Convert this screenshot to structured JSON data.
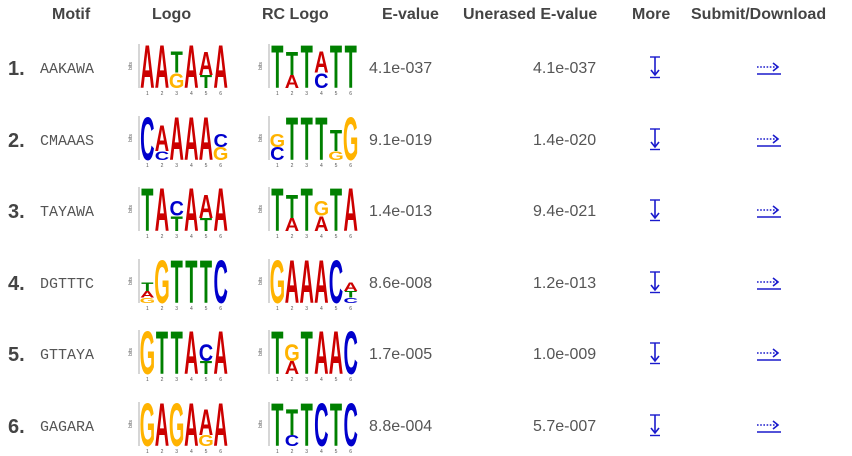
{
  "headers": {
    "motif": "Motif",
    "logo": "Logo",
    "rc_logo": "RC Logo",
    "evalue": "E-value",
    "unerased_evalue": "Unerased E-value",
    "more": "More",
    "submit_download": "Submit/Download"
  },
  "colors": {
    "A": "#CC0000",
    "C": "#0000CC",
    "G": "#FFB300",
    "T": "#008000",
    "link": "#1a1acc"
  },
  "logo_axis": {
    "label": "bits"
  },
  "icons": {
    "more": "down-arrow-icon",
    "submit": "dotted-right-arrow-icon"
  },
  "motifs": [
    {
      "index": "1.",
      "consensus": "AAKAWA",
      "evalue": "4.1e-037",
      "unerased_evalue": "4.1e-037",
      "logo": [
        [
          {
            "l": "A",
            "h": 1
          }
        ],
        [
          {
            "l": "A",
            "h": 1
          }
        ],
        [
          {
            "l": "T",
            "h": 0.5
          },
          {
            "l": "G",
            "h": 0.35
          }
        ],
        [
          {
            "l": "A",
            "h": 1
          }
        ],
        [
          {
            "l": "A",
            "h": 0.55
          },
          {
            "l": "T",
            "h": 0.3
          }
        ],
        [
          {
            "l": "A",
            "h": 1
          }
        ]
      ],
      "rc_logo": [
        [
          {
            "l": "T",
            "h": 1
          }
        ],
        [
          {
            "l": "T",
            "h": 0.55
          },
          {
            "l": "A",
            "h": 0.3
          }
        ],
        [
          {
            "l": "T",
            "h": 1
          }
        ],
        [
          {
            "l": "A",
            "h": 0.5
          },
          {
            "l": "C",
            "h": 0.35
          }
        ],
        [
          {
            "l": "T",
            "h": 1
          }
        ],
        [
          {
            "l": "T",
            "h": 1
          }
        ]
      ]
    },
    {
      "index": "2.",
      "consensus": "CMAAAS",
      "evalue": "9.1e-019",
      "unerased_evalue": "1.4e-020",
      "logo": [
        [
          {
            "l": "C",
            "h": 1
          }
        ],
        [
          {
            "l": "A",
            "h": 0.6
          },
          {
            "l": "C",
            "h": 0.2
          }
        ],
        [
          {
            "l": "A",
            "h": 1
          }
        ],
        [
          {
            "l": "A",
            "h": 1
          }
        ],
        [
          {
            "l": "A",
            "h": 1
          }
        ],
        [
          {
            "l": "C",
            "h": 0.3
          },
          {
            "l": "G",
            "h": 0.3
          }
        ]
      ],
      "rc_logo": [
        [
          {
            "l": "G",
            "h": 0.3
          },
          {
            "l": "C",
            "h": 0.3
          }
        ],
        [
          {
            "l": "T",
            "h": 1
          }
        ],
        [
          {
            "l": "T",
            "h": 1
          }
        ],
        [
          {
            "l": "T",
            "h": 1
          }
        ],
        [
          {
            "l": "T",
            "h": 0.5
          },
          {
            "l": "G",
            "h": 0.2
          }
        ],
        [
          {
            "l": "G",
            "h": 1
          }
        ]
      ]
    },
    {
      "index": "3.",
      "consensus": "TAYAWA",
      "evalue": "1.4e-013",
      "unerased_evalue": "9.4e-021",
      "logo": [
        [
          {
            "l": "T",
            "h": 1
          }
        ],
        [
          {
            "l": "A",
            "h": 1
          }
        ],
        [
          {
            "l": "C",
            "h": 0.35
          },
          {
            "l": "T",
            "h": 0.35
          }
        ],
        [
          {
            "l": "A",
            "h": 1
          }
        ],
        [
          {
            "l": "A",
            "h": 0.55
          },
          {
            "l": "T",
            "h": 0.3
          }
        ],
        [
          {
            "l": "A",
            "h": 1
          }
        ]
      ],
      "rc_logo": [
        [
          {
            "l": "T",
            "h": 1
          }
        ],
        [
          {
            "l": "T",
            "h": 0.55
          },
          {
            "l": "A",
            "h": 0.3
          }
        ],
        [
          {
            "l": "T",
            "h": 1
          }
        ],
        [
          {
            "l": "G",
            "h": 0.35
          },
          {
            "l": "A",
            "h": 0.35
          }
        ],
        [
          {
            "l": "T",
            "h": 1
          }
        ],
        [
          {
            "l": "A",
            "h": 1
          }
        ]
      ]
    },
    {
      "index": "4.",
      "consensus": "DGTTTC",
      "evalue": "8.6e-008",
      "unerased_evalue": "1.2e-013",
      "logo": [
        [
          {
            "l": "T",
            "h": 0.2
          },
          {
            "l": "A",
            "h": 0.15
          },
          {
            "l": "G",
            "h": 0.12
          }
        ],
        [
          {
            "l": "G",
            "h": 1
          }
        ],
        [
          {
            "l": "T",
            "h": 1
          }
        ],
        [
          {
            "l": "T",
            "h": 1
          }
        ],
        [
          {
            "l": "T",
            "h": 1
          }
        ],
        [
          {
            "l": "C",
            "h": 1
          }
        ]
      ],
      "rc_logo": [
        [
          {
            "l": "G",
            "h": 1
          }
        ],
        [
          {
            "l": "A",
            "h": 1
          }
        ],
        [
          {
            "l": "A",
            "h": 1
          }
        ],
        [
          {
            "l": "A",
            "h": 1
          }
        ],
        [
          {
            "l": "C",
            "h": 1
          }
        ],
        [
          {
            "l": "A",
            "h": 0.2
          },
          {
            "l": "T",
            "h": 0.15
          },
          {
            "l": "C",
            "h": 0.12
          }
        ]
      ]
    },
    {
      "index": "5.",
      "consensus": "GTTAYA",
      "evalue": "1.7e-005",
      "unerased_evalue": "1.0e-009",
      "logo": [
        [
          {
            "l": "G",
            "h": 1
          }
        ],
        [
          {
            "l": "T",
            "h": 1
          }
        ],
        [
          {
            "l": "T",
            "h": 1
          }
        ],
        [
          {
            "l": "A",
            "h": 1
          }
        ],
        [
          {
            "l": "C",
            "h": 0.4
          },
          {
            "l": "T",
            "h": 0.3
          }
        ],
        [
          {
            "l": "A",
            "h": 1
          }
        ]
      ],
      "rc_logo": [
        [
          {
            "l": "T",
            "h": 1
          }
        ],
        [
          {
            "l": "G",
            "h": 0.4
          },
          {
            "l": "A",
            "h": 0.3
          }
        ],
        [
          {
            "l": "T",
            "h": 1
          }
        ],
        [
          {
            "l": "A",
            "h": 1
          }
        ],
        [
          {
            "l": "A",
            "h": 1
          }
        ],
        [
          {
            "l": "C",
            "h": 1
          }
        ]
      ]
    },
    {
      "index": "6.",
      "consensus": "GAGARA",
      "evalue": "8.8e-004",
      "unerased_evalue": "5.7e-007",
      "logo": [
        [
          {
            "l": "G",
            "h": 1
          }
        ],
        [
          {
            "l": "A",
            "h": 1
          }
        ],
        [
          {
            "l": "G",
            "h": 1
          }
        ],
        [
          {
            "l": "A",
            "h": 1
          }
        ],
        [
          {
            "l": "A",
            "h": 0.6
          },
          {
            "l": "G",
            "h": 0.25
          }
        ],
        [
          {
            "l": "A",
            "h": 1
          }
        ]
      ],
      "rc_logo": [
        [
          {
            "l": "T",
            "h": 1
          }
        ],
        [
          {
            "l": "T",
            "h": 0.6
          },
          {
            "l": "C",
            "h": 0.25
          }
        ],
        [
          {
            "l": "T",
            "h": 1
          }
        ],
        [
          {
            "l": "C",
            "h": 1
          }
        ],
        [
          {
            "l": "T",
            "h": 1
          }
        ],
        [
          {
            "l": "C",
            "h": 1
          }
        ]
      ]
    }
  ]
}
